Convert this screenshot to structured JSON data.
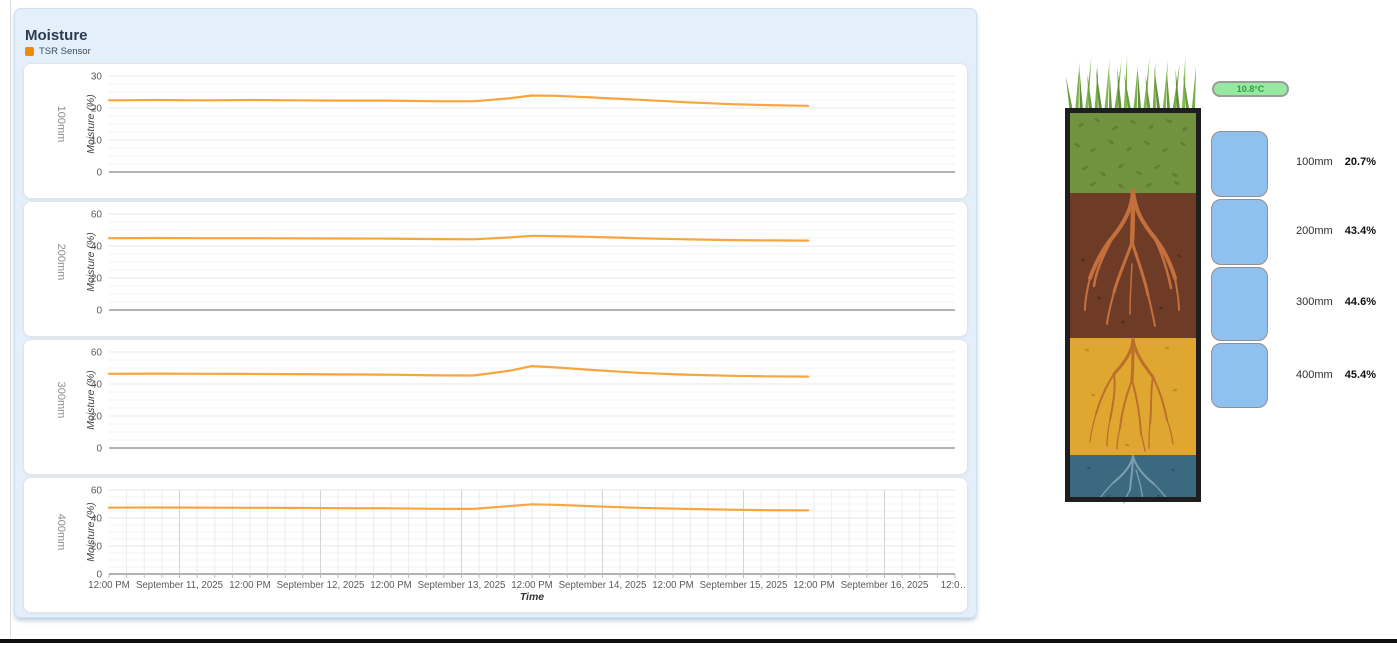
{
  "panel": {
    "title": "Moisture",
    "legend": {
      "label": "TSR Sensor",
      "swatch_color": "#ef8b09"
    }
  },
  "chart_data": {
    "type": "line",
    "series_name": "TSR Sensor",
    "line_color": "#f7a53f",
    "xlabel": "Time",
    "x_hours_range": [
      0,
      144
    ],
    "x_ticks": [
      {
        "t": 0,
        "label": "12:00 PM"
      },
      {
        "t": 12,
        "label": "September 11, 2025",
        "major": true
      },
      {
        "t": 24,
        "label": "12:00 PM"
      },
      {
        "t": 36,
        "label": "September 12, 2025",
        "major": true
      },
      {
        "t": 48,
        "label": "12:00 PM"
      },
      {
        "t": 60,
        "label": "September 13, 2025",
        "major": true
      },
      {
        "t": 72,
        "label": "12:00 PM"
      },
      {
        "t": 84,
        "label": "September 14, 2025",
        "major": true
      },
      {
        "t": 96,
        "label": "12:00 PM"
      },
      {
        "t": 108,
        "label": "September 15, 2025",
        "major": true
      },
      {
        "t": 120,
        "label": "12:00 PM"
      },
      {
        "t": 132,
        "label": "September 16, 2025",
        "major": true
      },
      {
        "t": 144,
        "label": "12:0…"
      }
    ],
    "charts": [
      {
        "depth_label": "100mm",
        "ylabel": "Moisture (%)",
        "ylim": [
          0,
          30
        ],
        "yticks": [
          0,
          10,
          20,
          30
        ],
        "minor_step": 2.5,
        "show_x_axis": false,
        "points": [
          [
            0,
            22.4
          ],
          [
            8,
            22.5
          ],
          [
            16,
            22.4
          ],
          [
            24,
            22.5
          ],
          [
            32,
            22.4
          ],
          [
            40,
            22.3
          ],
          [
            48,
            22.3
          ],
          [
            56,
            22.1
          ],
          [
            62,
            22.1
          ],
          [
            68,
            23.0
          ],
          [
            72,
            23.9
          ],
          [
            76,
            23.8
          ],
          [
            82,
            23.3
          ],
          [
            90,
            22.6
          ],
          [
            98,
            21.8
          ],
          [
            106,
            21.2
          ],
          [
            112,
            20.9
          ],
          [
            119,
            20.7
          ]
        ]
      },
      {
        "depth_label": "200mm",
        "ylabel": "Moisture (%)",
        "ylim": [
          0,
          60
        ],
        "yticks": [
          0,
          20,
          40,
          60
        ],
        "minor_step": 5,
        "show_x_axis": false,
        "points": [
          [
            0,
            44.9
          ],
          [
            8,
            45.0
          ],
          [
            16,
            44.9
          ],
          [
            24,
            44.9
          ],
          [
            32,
            44.8
          ],
          [
            40,
            44.7
          ],
          [
            48,
            44.6
          ],
          [
            56,
            44.3
          ],
          [
            62,
            44.2
          ],
          [
            68,
            45.3
          ],
          [
            72,
            46.4
          ],
          [
            76,
            46.2
          ],
          [
            82,
            45.7
          ],
          [
            90,
            44.9
          ],
          [
            98,
            44.2
          ],
          [
            106,
            43.7
          ],
          [
            112,
            43.5
          ],
          [
            119,
            43.4
          ]
        ]
      },
      {
        "depth_label": "300mm",
        "ylabel": "Moisture (%)",
        "ylim": [
          0,
          60
        ],
        "yticks": [
          0,
          20,
          40,
          60
        ],
        "minor_step": 5,
        "show_x_axis": false,
        "points": [
          [
            0,
            46.4
          ],
          [
            8,
            46.5
          ],
          [
            16,
            46.4
          ],
          [
            24,
            46.3
          ],
          [
            32,
            46.2
          ],
          [
            40,
            46.0
          ],
          [
            48,
            45.8
          ],
          [
            56,
            45.4
          ],
          [
            62,
            45.3
          ],
          [
            68,
            48.2
          ],
          [
            72,
            51.2
          ],
          [
            76,
            50.4
          ],
          [
            82,
            48.8
          ],
          [
            90,
            47.0
          ],
          [
            98,
            45.9
          ],
          [
            106,
            45.1
          ],
          [
            112,
            44.8
          ],
          [
            119,
            44.6
          ]
        ]
      },
      {
        "depth_label": "400mm",
        "ylabel": "Moisture (%)",
        "ylim": [
          0,
          60
        ],
        "yticks": [
          0,
          20,
          40,
          60
        ],
        "minor_step": 5,
        "show_x_axis": true,
        "points": [
          [
            0,
            47.4
          ],
          [
            8,
            47.5
          ],
          [
            16,
            47.4
          ],
          [
            24,
            47.3
          ],
          [
            32,
            47.2
          ],
          [
            40,
            47.0
          ],
          [
            48,
            46.9
          ],
          [
            56,
            46.6
          ],
          [
            62,
            46.5
          ],
          [
            68,
            48.4
          ],
          [
            72,
            49.8
          ],
          [
            76,
            49.4
          ],
          [
            82,
            48.4
          ],
          [
            90,
            47.3
          ],
          [
            98,
            46.5
          ],
          [
            106,
            45.9
          ],
          [
            112,
            45.6
          ],
          [
            119,
            45.4
          ]
        ]
      }
    ]
  },
  "soil_profile": {
    "temperature_badge": "10.8°C",
    "readings": [
      {
        "depth": "100mm",
        "value": "20.7%"
      },
      {
        "depth": "200mm",
        "value": "43.4%"
      },
      {
        "depth": "300mm",
        "value": "44.6%"
      },
      {
        "depth": "400mm",
        "value": "45.4%"
      }
    ],
    "colors": {
      "topsoil": "#73923f",
      "subsoil": "#6e3b26",
      "substratum": "#dfa72f",
      "bottom_layer": "#3b6a80",
      "sensor_box": "#8fc1ef",
      "badge_bg": "#97e9a1",
      "badge_text": "#2f9e44"
    }
  }
}
